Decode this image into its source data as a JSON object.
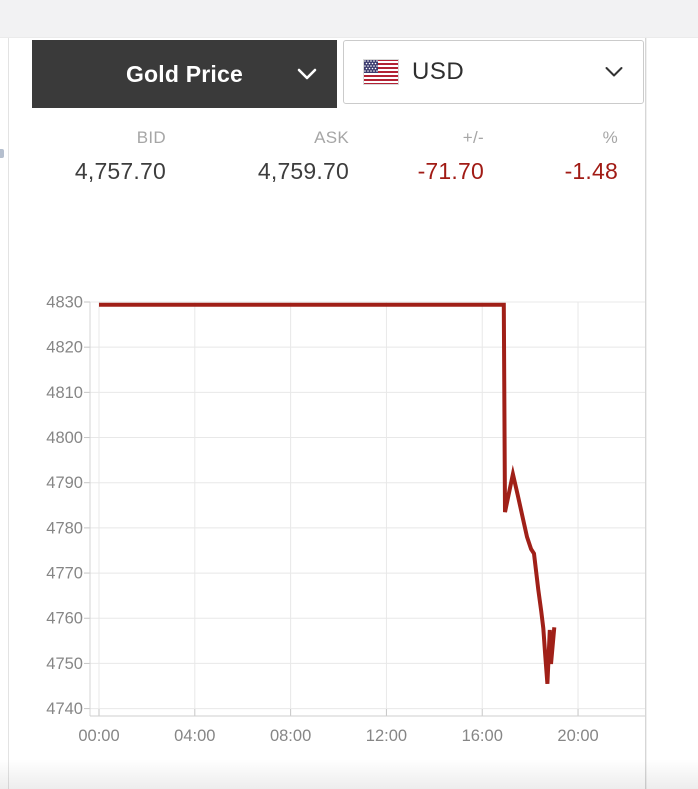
{
  "header": {
    "product_selector": {
      "label": "Gold Price"
    },
    "currency_selector": {
      "label": "USD",
      "flag": "us-flag"
    }
  },
  "quote": {
    "columns": [
      {
        "label": "BID",
        "value": "4,757.70",
        "negative": false
      },
      {
        "label": "ASK",
        "value": "4,759.70",
        "negative": false
      },
      {
        "label": "+/-",
        "value": "-71.70",
        "negative": true
      },
      {
        "label": "%",
        "value": "-1.48",
        "negative": true
      }
    ]
  },
  "colors": {
    "accent_dark": "#3a3a3a",
    "negative_text": "#a11b15",
    "line": "#a02018",
    "grid": "#e8e8e8",
    "axis": "#cfcfcf",
    "tick_label": "#868686"
  },
  "chart_data": {
    "type": "line",
    "x_unit": "time-of-day (hours)",
    "y_unit": "USD per ounce",
    "x_ticks": [
      {
        "hour": 0,
        "label": "00:00"
      },
      {
        "hour": 4,
        "label": "04:00"
      },
      {
        "hour": 8,
        "label": "08:00"
      },
      {
        "hour": 12,
        "label": "12:00"
      },
      {
        "hour": 16,
        "label": "16:00"
      },
      {
        "hour": 20,
        "label": "20:00"
      }
    ],
    "y_ticks": [
      4740,
      4750,
      4760,
      4770,
      4780,
      4790,
      4800,
      4810,
      4820,
      4830
    ],
    "y_range": [
      4738,
      4830
    ],
    "x_range_hours": [
      -0.38,
      22.8
    ],
    "grid": true,
    "legend": "none",
    "series": [
      {
        "name": "gold_usd",
        "color": "#a02018",
        "points": [
          [
            0.0,
            4829.4
          ],
          [
            16.9,
            4829.4
          ],
          [
            16.95,
            4783.5
          ],
          [
            17.28,
            4791.9
          ],
          [
            17.48,
            4787.3
          ],
          [
            17.7,
            4782.0
          ],
          [
            17.87,
            4778.0
          ],
          [
            18.04,
            4775.3
          ],
          [
            18.16,
            4774.3
          ],
          [
            18.34,
            4766.3
          ],
          [
            18.46,
            4761.6
          ],
          [
            18.55,
            4757.8
          ],
          [
            18.63,
            4751.9
          ],
          [
            18.72,
            4745.5
          ],
          [
            18.82,
            4757.4
          ],
          [
            18.87,
            4749.9
          ],
          [
            19.01,
            4758.0
          ]
        ]
      }
    ]
  }
}
